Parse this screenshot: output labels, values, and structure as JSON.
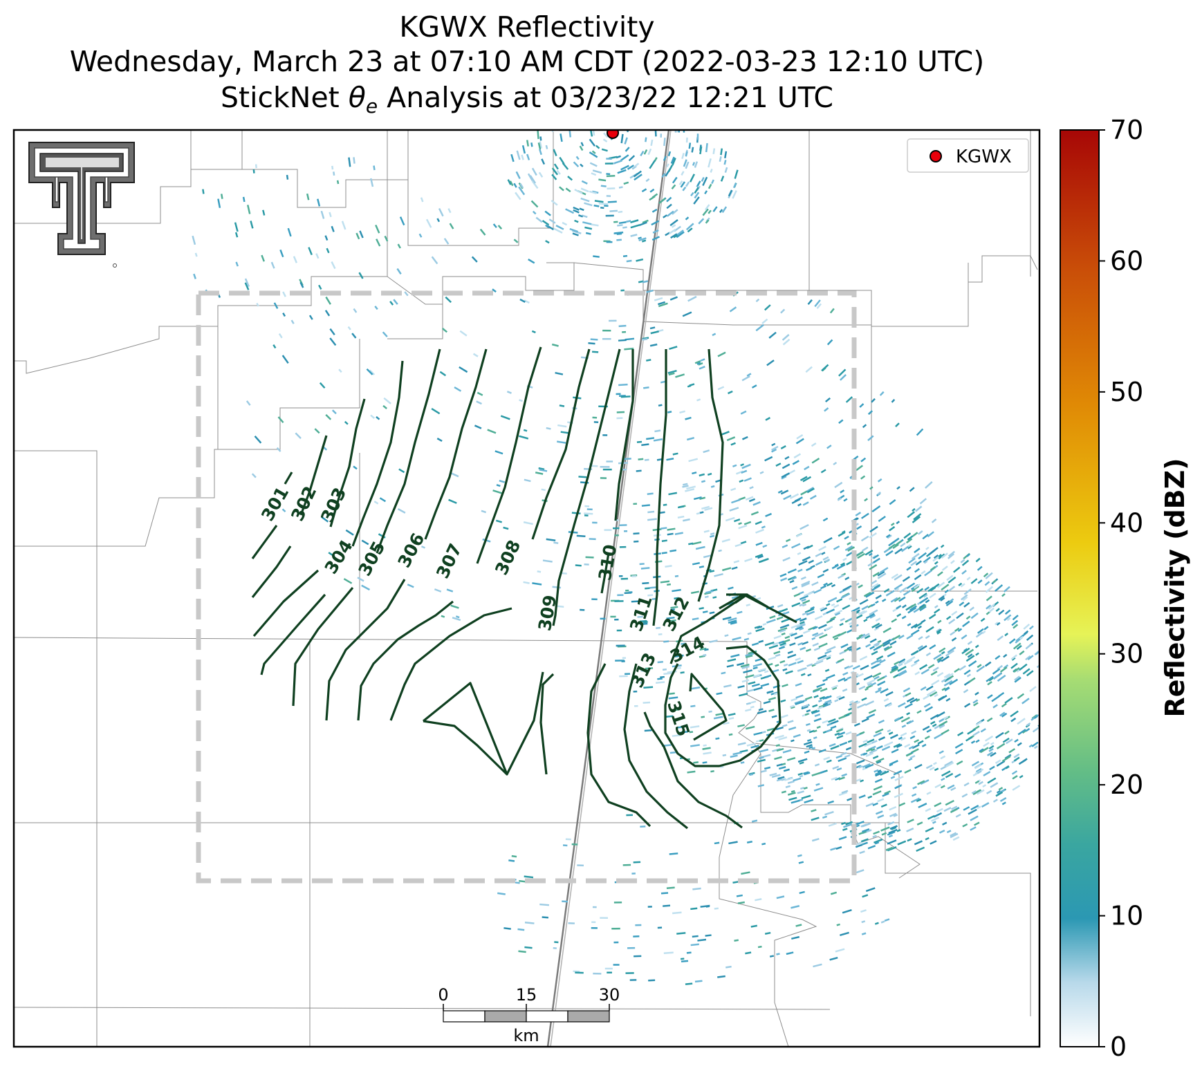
{
  "title": {
    "line1": "KGWX Reflectivity",
    "line2": "Wednesday, March 23 at 07:10 AM CDT (2022-03-23 12:10 UTC)",
    "line3_prefix": "StickNet ",
    "line3_symbol": "θ",
    "line3_sub": "e",
    "line3_suffix": " Analysis at 03/23/22 12:21 UTC"
  },
  "legend": {
    "label": "KGWX",
    "marker_color": "#e8000b"
  },
  "colorbar": {
    "label": "Reflectivity (dBZ)",
    "ticks": [
      "0",
      "10",
      "20",
      "30",
      "40",
      "50",
      "60",
      "70"
    ],
    "min": 0,
    "max": 70,
    "colors": [
      "#ffffff",
      "#b8d9ea",
      "#2b98b3",
      "#3aa6a0",
      "#63bd86",
      "#a6dc73",
      "#e6f357",
      "#eccb10",
      "#e08a05",
      "#c94d08",
      "#a70706"
    ]
  },
  "scalebar": {
    "ticks": [
      "0",
      "15",
      "30"
    ],
    "unit": "km"
  },
  "contour_labels": [
    "301",
    "302",
    "303",
    "304",
    "305",
    "306",
    "307",
    "308",
    "309",
    "310",
    "311",
    "312",
    "313",
    "314",
    "315"
  ],
  "colors": {
    "contour": "#0f4020",
    "analysis_box": "#c8c8c8",
    "boundaries": "#8c8c8c",
    "highway": "#808080",
    "echo": "#3a9ec0"
  },
  "logo": {
    "name": "Texas Tech Double T"
  }
}
